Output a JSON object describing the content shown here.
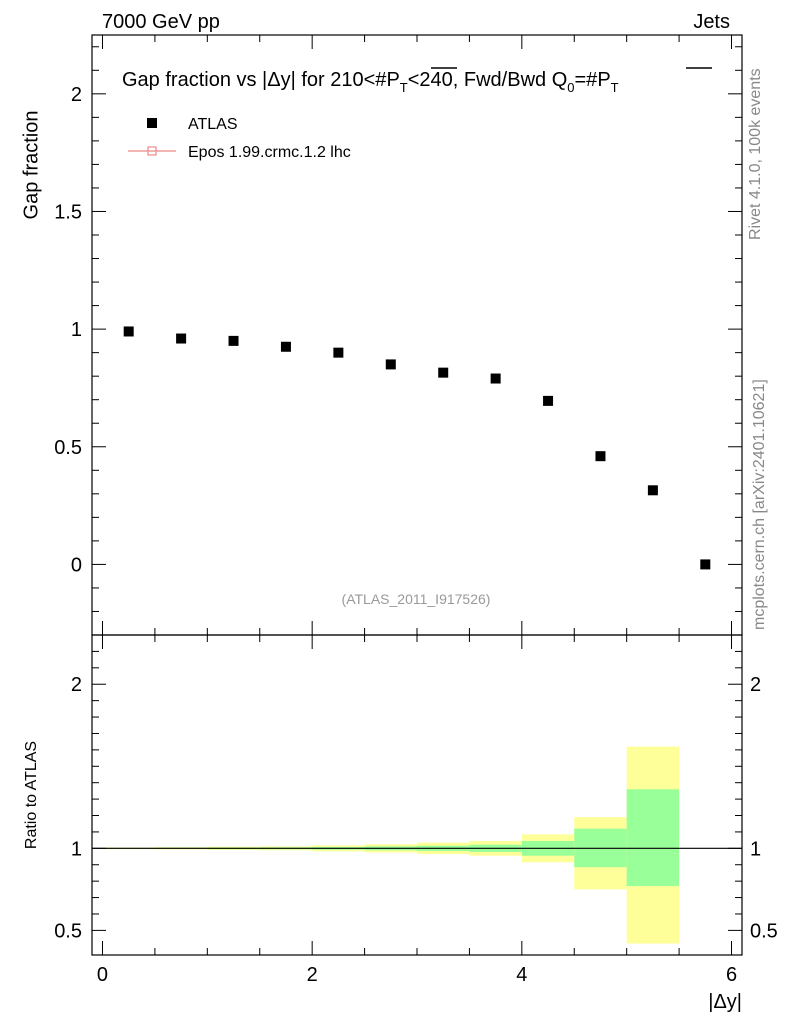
{
  "header": {
    "left": "7000 GeV pp",
    "right": "Jets"
  },
  "side_labels": {
    "rivet": "Rivet 4.1.0,  100k events",
    "mcplots": "mcplots.cern.ch [arXiv:2401.10621]"
  },
  "watermark": "(ATLAS_2011_I917526)",
  "legend": {
    "data_label": "ATLAS",
    "mc_label": "Epos 1.99.crmc.1.2 lhc"
  },
  "colors": {
    "data": "#000000",
    "mc": "#ee8888",
    "band_inner": "#99ff99",
    "band_outer": "#ffff99"
  },
  "chart_data": [
    {
      "type": "scatter",
      "title_main": "Gap fraction vs |Δy| for 210<#",
      "title_p": "P",
      "title_t": "T",
      "title_mid": "<240, Fwd/Bwd Q",
      "title_sub0": "0",
      "title_eq": "=#",
      "ylabel": "Gap fraction",
      "xlim": [
        -0.1,
        6.1
      ],
      "ylim": [
        -0.3,
        2.25
      ],
      "yticks": [
        0,
        0.5,
        1,
        1.5,
        2
      ],
      "ytick_labels": [
        "0",
        "0.5",
        "1",
        "1.5",
        "2"
      ],
      "series": [
        {
          "name": "ATLAS",
          "x": [
            0.25,
            0.75,
            1.25,
            1.75,
            2.25,
            2.75,
            3.25,
            3.75,
            4.25,
            4.75,
            5.25,
            5.75
          ],
          "values": [
            0.99,
            0.96,
            0.95,
            0.925,
            0.9,
            0.85,
            0.815,
            0.79,
            0.695,
            0.46,
            0.315,
            0.0
          ]
        }
      ]
    },
    {
      "type": "area",
      "ylabel": "Ratio to ATLAS",
      "xlabel": "|Δy|",
      "xlim": [
        -0.1,
        6.1
      ],
      "ylim": [
        0.35,
        2.3
      ],
      "yticks": [
        0.5,
        1,
        2
      ],
      "ytick_labels": [
        "0.5",
        "1",
        "2"
      ],
      "xticks": [
        0,
        2,
        4,
        6
      ],
      "xtick_labels": [
        "0",
        "2",
        "4",
        "6"
      ],
      "bins": [
        0,
        0.5,
        1,
        1.5,
        2,
        2.5,
        3,
        3.5,
        4,
        4.5,
        5,
        5.5
      ],
      "bins_hi": [
        0.5,
        1,
        1.5,
        2,
        2.5,
        3,
        3.5,
        4,
        4.5,
        5,
        5.5,
        6
      ],
      "inner_lo": [
        0.997,
        0.996,
        0.995,
        0.994,
        0.992,
        0.988,
        0.984,
        0.978,
        0.955,
        0.885,
        0.77,
        null
      ],
      "inner_hi": [
        1.003,
        1.004,
        1.005,
        1.006,
        1.008,
        1.012,
        1.016,
        1.022,
        1.045,
        1.12,
        1.36,
        null
      ],
      "outer_lo": [
        0.995,
        0.993,
        0.99,
        0.988,
        0.982,
        0.975,
        0.965,
        0.955,
        0.915,
        0.75,
        0.42,
        null
      ],
      "outer_hi": [
        1.005,
        1.007,
        1.01,
        1.012,
        1.018,
        1.025,
        1.035,
        1.045,
        1.085,
        1.19,
        1.62,
        null
      ]
    }
  ]
}
